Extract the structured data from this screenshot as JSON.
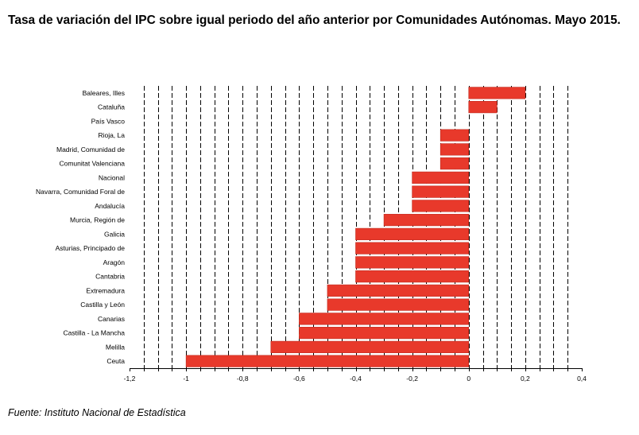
{
  "header": {
    "title": "Tasa de variación del IPC sobre igual periodo del año anterior por Comunidades Autónomas. Mayo 2015."
  },
  "footer": {
    "source": "Fuente: Instituto Nacional de Estadística"
  },
  "chart_data": {
    "type": "bar",
    "orientation": "horizontal",
    "title": "Tasa de variación del IPC sobre igual periodo del año anterior por Comunidades Autónomas. Mayo 2015.",
    "categories": [
      "Baleares, Illes",
      "Cataluña",
      "País Vasco",
      "Rioja, La",
      "Madrid, Comunidad de",
      "Comunitat Valenciana",
      "Nacional",
      "Navarra, Comunidad Foral de",
      "Andalucía",
      "Murcia, Región de",
      "Galicia",
      "Asturias, Principado de",
      "Aragón",
      "Cantabria",
      "Extremadura",
      "Castilla y León",
      "Canarias",
      "Castilla - La Mancha",
      "Melilla",
      "Ceuta"
    ],
    "values": [
      0.2,
      0.1,
      0.0,
      -0.1,
      -0.1,
      -0.1,
      -0.2,
      -0.2,
      -0.2,
      -0.3,
      -0.4,
      -0.4,
      -0.4,
      -0.4,
      -0.5,
      -0.5,
      -0.6,
      -0.6,
      -0.7,
      -1.0
    ],
    "xlim": [
      -1.2,
      0.4
    ],
    "xticks": [
      -1.2,
      -1,
      -0.8,
      -0.6,
      -0.4,
      -0.2,
      0,
      0.2,
      0.4
    ],
    "xtick_labels": [
      "-1,2",
      "-1",
      "-0,8",
      "-0,6",
      "-0,4",
      "-0,2",
      "0",
      "0,2",
      "0,4"
    ],
    "grid": "vertical dashed",
    "bar_color": "#e8392b",
    "xlabel": "",
    "ylabel": ""
  }
}
